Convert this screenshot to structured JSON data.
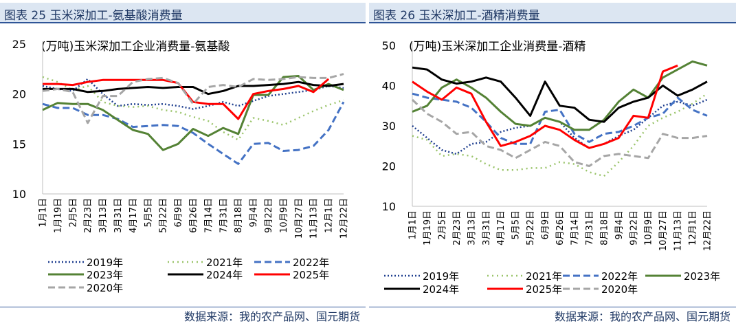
{
  "charts_header": {
    "left": {
      "title": "图表 25 玉米深加工-氨基酸消费量",
      "source": "数据来源：我的农产品网、国元期货"
    },
    "right": {
      "title": "图表 26 玉米深加工-酒精消费量",
      "source": "数据来源：我的农产品网、国元期货"
    }
  },
  "colors": {
    "2019": "#1f3f8f",
    "2021": "#9ac46a",
    "2022": "#4472c4",
    "2023": "#548235",
    "2024": "#000000",
    "2025": "#ff0000",
    "2020": "#a6a6a6"
  },
  "chart_data": [
    {
      "type": "line",
      "title": "(万吨)玉米深加工企业消费量-氨基酸",
      "categories": [
        "1月1日",
        "1月19日",
        "2月5日",
        "2月23日",
        "3月13日",
        "3月31日",
        "4月17日",
        "5月5日",
        "5月22日",
        "6月9日",
        "6月26日",
        "7月14日",
        "7月31日",
        "8月18日",
        "9月4日",
        "9月22日",
        "10月9日",
        "10月27日",
        "11月13日",
        "12月1日",
        "12月22日"
      ],
      "ylim": [
        10,
        25
      ],
      "yticks": [
        10,
        15,
        20,
        25
      ],
      "legend_labels": [
        "2019年",
        "2021年",
        "2022年",
        "2023年",
        "2024年",
        "2025年",
        "2020年"
      ],
      "series": [
        {
          "name": "2019",
          "style": "dot",
          "values": [
            20.8,
            20.5,
            20.3,
            21.5,
            20.0,
            18.8,
            19.0,
            18.9,
            19.0,
            18.8,
            18.5,
            18.8,
            19.2,
            18.8,
            19.3,
            19.8,
            20.0,
            20.2,
            20.4,
            20.8,
            20.6
          ]
        },
        {
          "name": "2021",
          "style": "dotsparse",
          "values": [
            21.7,
            21.2,
            20.4,
            20.8,
            19.2,
            18.8,
            18.7,
            18.8,
            18.4,
            18.2,
            17.7,
            17.3,
            16.2,
            15.4,
            17.6,
            17.3,
            16.9,
            17.6,
            18.3,
            18.9,
            19.4
          ]
        },
        {
          "name": "2022",
          "style": "dash",
          "values": [
            19.0,
            18.6,
            18.6,
            17.9,
            17.9,
            17.5,
            16.7,
            16.8,
            16.9,
            16.8,
            16.1,
            15.0,
            14.0,
            13.0,
            15.0,
            15.1,
            14.3,
            14.4,
            14.8,
            16.4,
            19.2
          ]
        },
        {
          "name": "2023",
          "style": "solid",
          "values": [
            18.4,
            19.1,
            19.0,
            19.0,
            18.4,
            17.4,
            16.4,
            16.0,
            14.4,
            15.0,
            16.5,
            15.8,
            16.6,
            16.0,
            19.9,
            19.9,
            21.7,
            21.8,
            20.4,
            21.0,
            20.4
          ]
        },
        {
          "name": "2024",
          "style": "solid",
          "values": [
            20.5,
            20.5,
            20.5,
            20.2,
            20.3,
            20.5,
            20.6,
            20.7,
            20.6,
            20.7,
            20.7,
            20.0,
            20.3,
            20.8,
            20.8,
            20.9,
            21.0,
            21.2,
            20.9,
            20.8,
            21.0
          ]
        },
        {
          "name": "2025",
          "style": "solid",
          "values": [
            21.0,
            21.0,
            20.9,
            21.2,
            21.4,
            21.4,
            21.4,
            21.4,
            21.4,
            21.1,
            19.2,
            19.0,
            19.0,
            17.5,
            20.0,
            20.3,
            20.5,
            20.8,
            20.2,
            21.5,
            null
          ]
        },
        {
          "name": "2020",
          "style": "dash",
          "values": [
            20.3,
            20.5,
            20.2,
            17.1,
            19.8,
            19.8,
            21.2,
            21.5,
            21.6,
            21.1,
            19.0,
            20.7,
            20.9,
            20.7,
            21.5,
            21.4,
            21.5,
            21.7,
            21.6,
            21.6,
            22.0
          ]
        }
      ]
    },
    {
      "type": "line",
      "title": "(万吨)玉米深加工企业消费量-酒精",
      "categories": [
        "1月1日",
        "1月19日",
        "2月5日",
        "2月23日",
        "3月13日",
        "3月31日",
        "4月17日",
        "5月5日",
        "5月22日",
        "6月9日",
        "6月26日",
        "7月14日",
        "7月31日",
        "8月18日",
        "9月4日",
        "9月22日",
        "10月9日",
        "10月27日",
        "11月13日",
        "12月1日",
        "12月22日"
      ],
      "ylim": [
        10,
        50
      ],
      "yticks": [
        10,
        20,
        30,
        40,
        50
      ],
      "legend_labels": [
        "2019年",
        "2021年",
        "2022年",
        "2023年",
        "2024年",
        "2025年",
        "2020年"
      ],
      "series": [
        {
          "name": "2019",
          "style": "dot",
          "values": [
            30.0,
            27.0,
            24.0,
            23.0,
            25.5,
            26.0,
            28.5,
            29.5,
            30.0,
            32.0,
            31.0,
            27.0,
            24.5,
            25.5,
            27.5,
            29.0,
            32.0,
            35.0,
            36.0,
            35.0,
            36.5
          ]
        },
        {
          "name": "2021",
          "style": "dotsparse",
          "values": [
            27.5,
            26.5,
            22.5,
            23.0,
            22.5,
            20.5,
            19.0,
            19.0,
            19.5,
            19.5,
            21.0,
            20.5,
            18.5,
            17.5,
            21.0,
            25.0,
            30.0,
            32.0,
            33.5,
            35.5,
            38.0
          ]
        },
        {
          "name": "2022",
          "style": "dash",
          "values": [
            38.0,
            37.0,
            36.5,
            36.0,
            34.5,
            31.0,
            27.0,
            25.5,
            25.5,
            33.5,
            34.0,
            28.0,
            26.0,
            28.0,
            28.5,
            30.0,
            32.0,
            33.0,
            37.0,
            34.0,
            32.5
          ]
        },
        {
          "name": "2023",
          "style": "solid",
          "values": [
            33.5,
            35.0,
            39.5,
            41.5,
            39.5,
            37.0,
            33.5,
            30.5,
            30.0,
            32.0,
            31.0,
            29.0,
            29.0,
            31.5,
            36.0,
            39.0,
            37.0,
            42.0,
            44.0,
            46.0,
            45.0
          ]
        },
        {
          "name": "2024",
          "style": "solid",
          "values": [
            44.5,
            44.0,
            41.5,
            40.5,
            41.0,
            42.0,
            41.0,
            37.0,
            32.5,
            41.0,
            35.0,
            34.5,
            31.5,
            31.0,
            34.5,
            36.0,
            37.0,
            40.0,
            37.5,
            39.0,
            41.0
          ]
        },
        {
          "name": "2025",
          "style": "solid",
          "values": [
            41.0,
            38.5,
            36.5,
            39.5,
            38.0,
            31.0,
            25.0,
            26.0,
            27.5,
            30.0,
            29.0,
            26.5,
            24.5,
            25.5,
            27.0,
            32.5,
            32.0,
            43.5,
            45.0,
            null,
            null
          ]
        },
        {
          "name": "2020",
          "style": "dash",
          "values": [
            36.5,
            33.0,
            31.0,
            28.0,
            28.5,
            25.0,
            24.0,
            22.0,
            24.0,
            26.0,
            25.0,
            21.0,
            20.0,
            22.5,
            23.0,
            22.5,
            22.0,
            28.0,
            27.0,
            27.0,
            27.5
          ]
        }
      ]
    }
  ]
}
